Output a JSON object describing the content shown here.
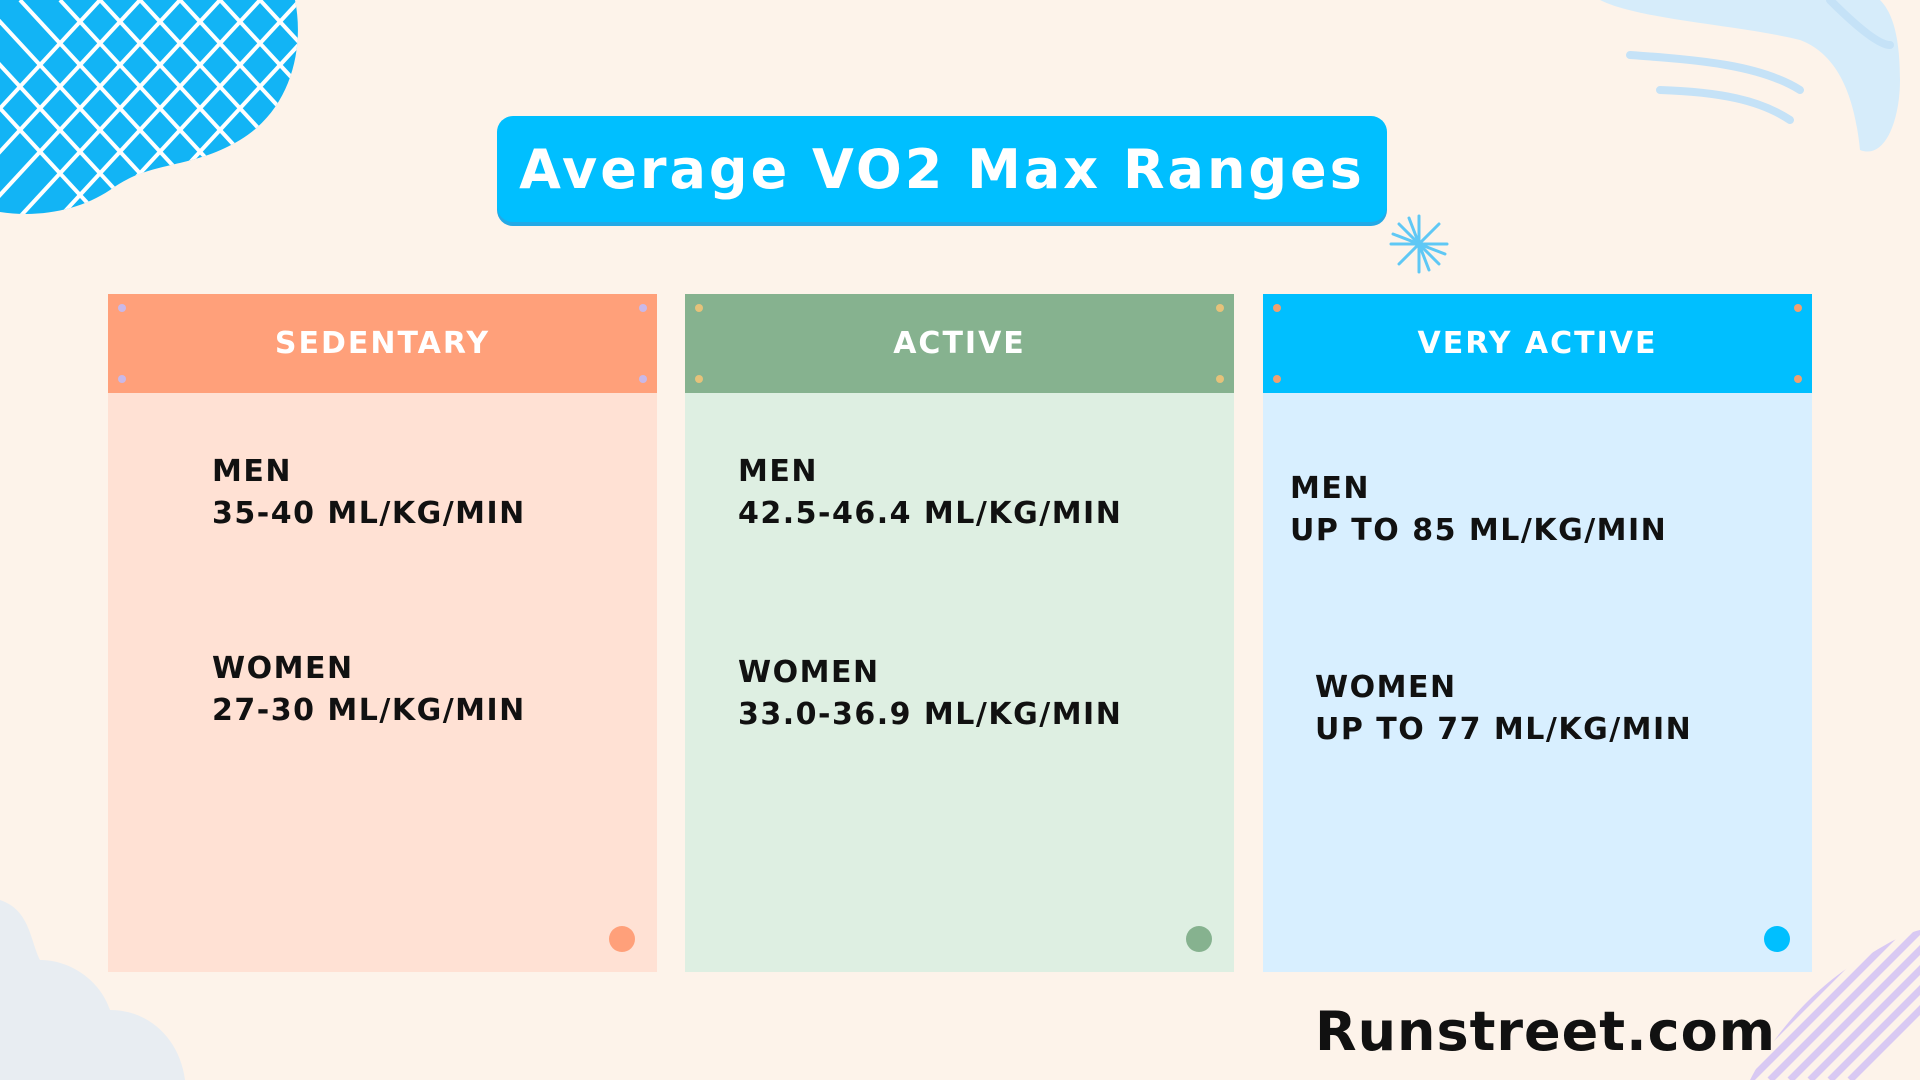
{
  "title": "Average VO2 Max Ranges",
  "cards": [
    {
      "title": "Sedentary",
      "men_label": "Men",
      "men_value": "35-40 ml/kg/min",
      "women_label": "Women",
      "women_value": "27-30 ml/kg/min",
      "accent": "#ffa07a"
    },
    {
      "title": "Active",
      "men_label": "Men",
      "men_value": "42.5-46.4 ml/kg/min",
      "women_label": "Women",
      "women_value": "33.0-36.9 ml/kg/min",
      "accent": "#86b28f"
    },
    {
      "title": "Very Active",
      "men_label": "Men",
      "men_value": "Up to 85 ml/kg/min",
      "women_label": "Women",
      "women_value": "Up to 77 ml/kg/min",
      "accent": "#00bfff"
    }
  ],
  "brand": "Runstreet.com",
  "colors": {
    "background": "#fdf3ea",
    "banner": "#00bfff",
    "text": "#111111"
  },
  "icons": {
    "corner_pattern": "grid-blob-icon",
    "sparkle": "sparkle-icon",
    "swirl": "swirl-lines-icon",
    "stripes": "diagonal-stripes-icon"
  }
}
